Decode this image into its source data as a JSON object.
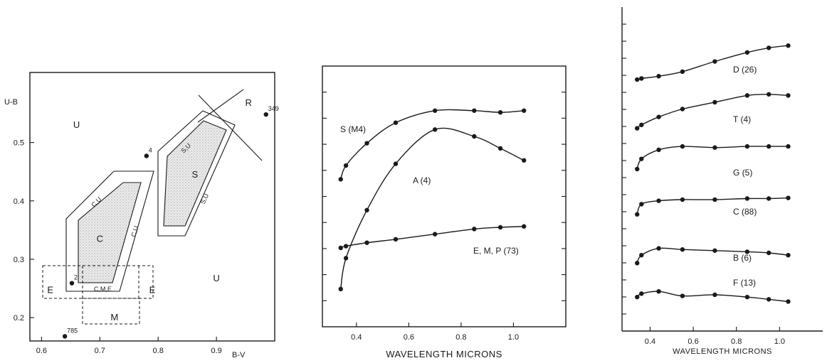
{
  "chart_data": [
    {
      "type": "scatter",
      "xlabel": "B-V",
      "ylabel": "U-B",
      "xlim": [
        0.58,
        1.0
      ],
      "ylim": [
        0.16,
        0.62
      ],
      "x_ticks": [
        0.6,
        0.7,
        0.8,
        0.9
      ],
      "x_tick_labels": [
        "0.6",
        "0.7",
        "0.8",
        "0.9"
      ],
      "y_ticks": [
        0.2,
        0.3,
        0.4,
        0.5
      ],
      "y_tick_labels": [
        "0.2",
        "0.3",
        "0.4",
        "0.5"
      ],
      "points": [
        {
          "label": "349",
          "x": 0.985,
          "y": 0.548
        },
        {
          "label": "4",
          "x": 0.78,
          "y": 0.477
        },
        {
          "label": "2",
          "x": 0.652,
          "y": 0.259
        },
        {
          "label": "785",
          "x": 0.64,
          "y": 0.168
        }
      ],
      "regions": [
        {
          "label": "C",
          "x": 0.7,
          "y": 0.33
        },
        {
          "label": "S",
          "x": 0.863,
          "y": 0.44
        },
        {
          "label": "U",
          "x": 0.66,
          "y": 0.525
        },
        {
          "label": "U",
          "x": 0.9,
          "y": 0.262
        },
        {
          "label": "R",
          "x": 0.955,
          "y": 0.563
        },
        {
          "label": "E",
          "x": 0.615,
          "y": 0.242
        },
        {
          "label": "E",
          "x": 0.79,
          "y": 0.242
        },
        {
          "label": "M",
          "x": 0.725,
          "y": 0.195
        },
        {
          "label": "C,M,E",
          "x": 0.705,
          "y": 0.245
        }
      ],
      "boundary_labels": [
        "C,U",
        "C,U",
        "S,U",
        "S,U"
      ]
    },
    {
      "type": "line",
      "xlabel": "WAVELENGTH MICRONS",
      "ylabel": "",
      "xlim": [
        0.27,
        1.2
      ],
      "x_ticks": [
        0.4,
        0.6,
        0.8,
        1.0
      ],
      "x_tick_labels": [
        "0.4",
        "0.6",
        "0.8",
        "1.0"
      ],
      "series": [
        {
          "name": "S (M4)",
          "x": [
            0.34,
            0.36,
            0.44,
            0.55,
            0.7,
            0.85,
            0.95,
            1.04
          ],
          "y": [
            7.0,
            7.8,
            9.1,
            10.3,
            11.0,
            11.0,
            10.9,
            11.0
          ]
        },
        {
          "name": "A (4)",
          "x": [
            0.34,
            0.36,
            0.44,
            0.55,
            0.7,
            0.85,
            0.95,
            1.04
          ],
          "y": [
            0.6,
            2.4,
            5.2,
            7.9,
            9.9,
            9.5,
            8.8,
            8.1
          ]
        },
        {
          "name": "E, M, P (73)",
          "x": [
            0.34,
            0.36,
            0.44,
            0.55,
            0.7,
            0.85,
            0.95,
            1.04
          ],
          "y": [
            3.0,
            3.1,
            3.3,
            3.5,
            3.8,
            4.1,
            4.2,
            4.25
          ]
        }
      ]
    },
    {
      "type": "line",
      "xlabel": "WAVELENGTH MICRONS",
      "ylabel": "",
      "xlim": [
        0.27,
        1.2
      ],
      "x_ticks": [
        0.4,
        0.6,
        0.8,
        1.0
      ],
      "x_tick_labels": [
        "0.4",
        "0.6",
        "0.8",
        "1.0"
      ],
      "series": [
        {
          "name": "D (26)",
          "x": [
            0.34,
            0.36,
            0.44,
            0.55,
            0.7,
            0.85,
            0.95,
            1.04
          ],
          "y": [
            19.2,
            19.3,
            19.5,
            19.9,
            20.8,
            21.6,
            22.0,
            22.2
          ]
        },
        {
          "name": "T (4)",
          "x": [
            0.34,
            0.36,
            0.44,
            0.55,
            0.7,
            0.85,
            0.95,
            1.04
          ],
          "y": [
            14.9,
            15.2,
            15.9,
            16.6,
            17.2,
            17.8,
            17.9,
            17.8
          ]
        },
        {
          "name": "G (5)",
          "x": [
            0.34,
            0.36,
            0.44,
            0.55,
            0.7,
            0.85,
            0.95,
            1.04
          ],
          "y": [
            11.3,
            12.2,
            13.0,
            13.3,
            13.2,
            13.3,
            13.3,
            13.3
          ]
        },
        {
          "name": "C (88)",
          "x": [
            0.34,
            0.36,
            0.44,
            0.55,
            0.7,
            0.85,
            0.95,
            1.04
          ],
          "y": [
            7.3,
            8.2,
            8.5,
            8.6,
            8.6,
            8.7,
            8.7,
            8.75
          ]
        },
        {
          "name": "B (6)",
          "x": [
            0.34,
            0.36,
            0.44,
            0.55,
            0.7,
            0.85,
            0.95,
            1.04
          ],
          "y": [
            3.0,
            3.7,
            4.3,
            4.2,
            4.1,
            4.0,
            3.9,
            3.7
          ]
        },
        {
          "name": "F (13)",
          "x": [
            0.34,
            0.36,
            0.44,
            0.55,
            0.7,
            0.85,
            0.95,
            1.04
          ],
          "y": [
            0.0,
            0.3,
            0.5,
            0.1,
            0.2,
            0.0,
            -0.2,
            -0.4
          ]
        }
      ]
    }
  ]
}
